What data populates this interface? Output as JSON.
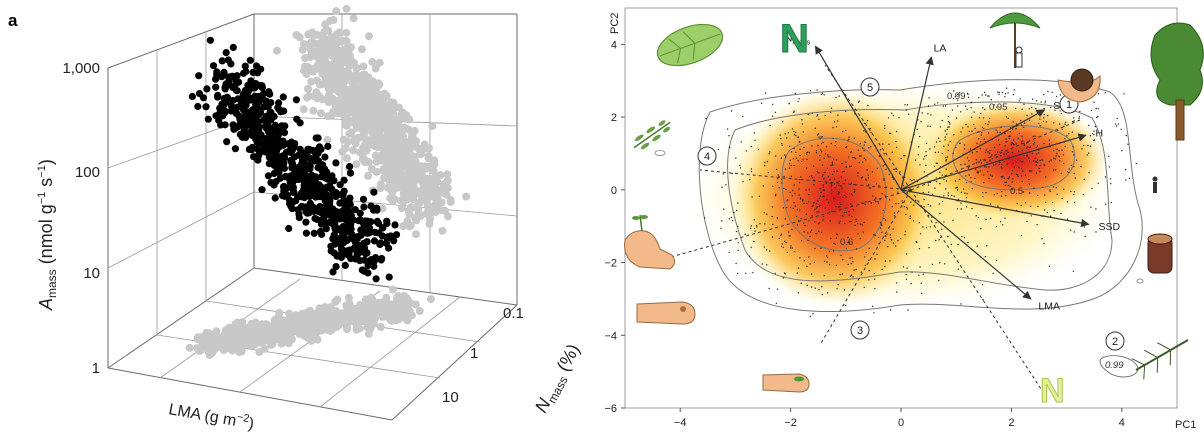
{
  "panel_label": "a",
  "chart_data": [
    {
      "type": "scatter",
      "projection": "3d",
      "panel": "a",
      "z_axis_label": "A",
      "z_axis_label_sub": "mass",
      "z_axis_label_rest": " (nmol g",
      "z_axis_label_exp1": "−1",
      "z_axis_label_mid": " s",
      "z_axis_label_exp2": "−1",
      "z_axis_label_end": ")",
      "z_ticks": [
        "1,000",
        "100",
        "10",
        "1"
      ],
      "z_scale": "log",
      "x_axis_label": "LMA (g m",
      "x_axis_label_exp": "−2",
      "x_axis_label_end": ")",
      "y_axis_label": "N",
      "y_axis_label_sub": "mass",
      "y_axis_label_end": " (%)",
      "y_ticks": [
        "0.1",
        "1",
        "10"
      ],
      "y_scale": "log",
      "series_colors": {
        "points": "#000000",
        "shadow": "#c8c8c8"
      },
      "grid": true
    },
    {
      "type": "scatter",
      "panel": "b",
      "xlabel": "PC1",
      "ylabel": "PC2",
      "xlim": [
        -5,
        5
      ],
      "ylim": [
        -6,
        5
      ],
      "x_ticks": [
        "−4",
        "−2",
        "0",
        "2",
        "4"
      ],
      "y_ticks": [
        "4",
        "2",
        "0",
        "−2",
        "−4",
        "−6"
      ],
      "x_tick_values": [
        -4,
        -2,
        0,
        2,
        4
      ],
      "y_tick_values": [
        4,
        2,
        0,
        -2,
        -4,
        -6
      ],
      "loadings": [
        {
          "label": "N",
          "label_sub": "mass",
          "x": -1.55,
          "y": 3.95
        },
        {
          "label": "LA",
          "x": 0.55,
          "y": 3.65
        },
        {
          "label": "SM",
          "x": 2.6,
          "y": 2.2
        },
        {
          "label": "H",
          "x": 3.35,
          "y": 1.5
        },
        {
          "label": "SSD",
          "x": 3.4,
          "y": -0.95
        },
        {
          "label": "LMA",
          "x": 2.35,
          "y": -3.0
        }
      ],
      "loadings_label_offsets": "end",
      "density_peaks": [
        {
          "x": -1.2,
          "y": -0.2
        },
        {
          "x": 2.0,
          "y": 1.1
        }
      ],
      "contour_labels": [
        "0.99",
        "0.95",
        "0.5",
        "0.6",
        "0.99"
      ],
      "numbered_markers": [
        "1",
        "2",
        "3",
        "4",
        "5"
      ],
      "icon_letter_top": "N",
      "icon_letter_bottom": "N",
      "colors": {
        "density_high": "#d7191c",
        "density_mid": "#f7a11a",
        "density_low": "#fff2a8",
        "arrow": "#333333",
        "contour": "#6b6b6b",
        "letter_top": "#2e9e5b",
        "letter_bottom": "#c9df6a"
      }
    }
  ]
}
